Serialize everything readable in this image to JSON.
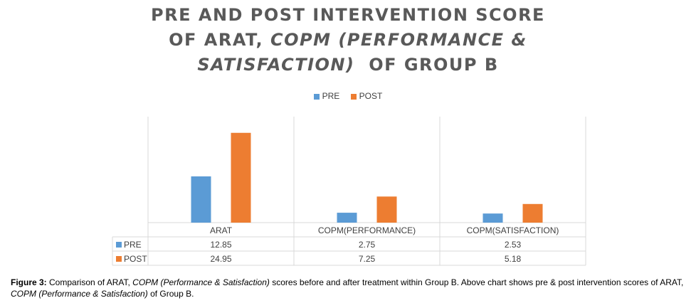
{
  "chart_data": {
    "type": "bar",
    "title_lines": [
      "PRE AND POST INTERVENTION SCORE",
      "OF ARAT, ",
      "COPM (PERFORMANCE &",
      "SATISFACTION)",
      "  OF GROUP B"
    ],
    "categories": [
      "ARAT",
      "COPM(PERFORMANCE)",
      "COPM(SATISFACTION)"
    ],
    "series": [
      {
        "name": "PRE",
        "color": "#5b9bd5",
        "values": [
          12.85,
          2.75,
          2.53
        ],
        "labels": [
          "12.85",
          "2.75",
          "2.53"
        ]
      },
      {
        "name": "POST",
        "color": "#ed7d31",
        "values": [
          24.95,
          7.25,
          5.18
        ],
        "labels": [
          "24.95",
          "7.25",
          "5.18"
        ]
      }
    ],
    "ylim": [
      0,
      30
    ],
    "legend_position": "top-center",
    "grid": "vertical-category-separators",
    "data_table": true
  },
  "caption": {
    "label": "Figure 3:",
    "part1": " Comparison of ARAT, ",
    "part2": "COPM (Performance & Satisfaction)",
    "part3": " scores before and after treatment within Group B. Above chart shows pre & post intervention scores of ARAT, ",
    "part4": "COPM (Performance & Satisfaction)",
    "part5": " of Group B."
  }
}
